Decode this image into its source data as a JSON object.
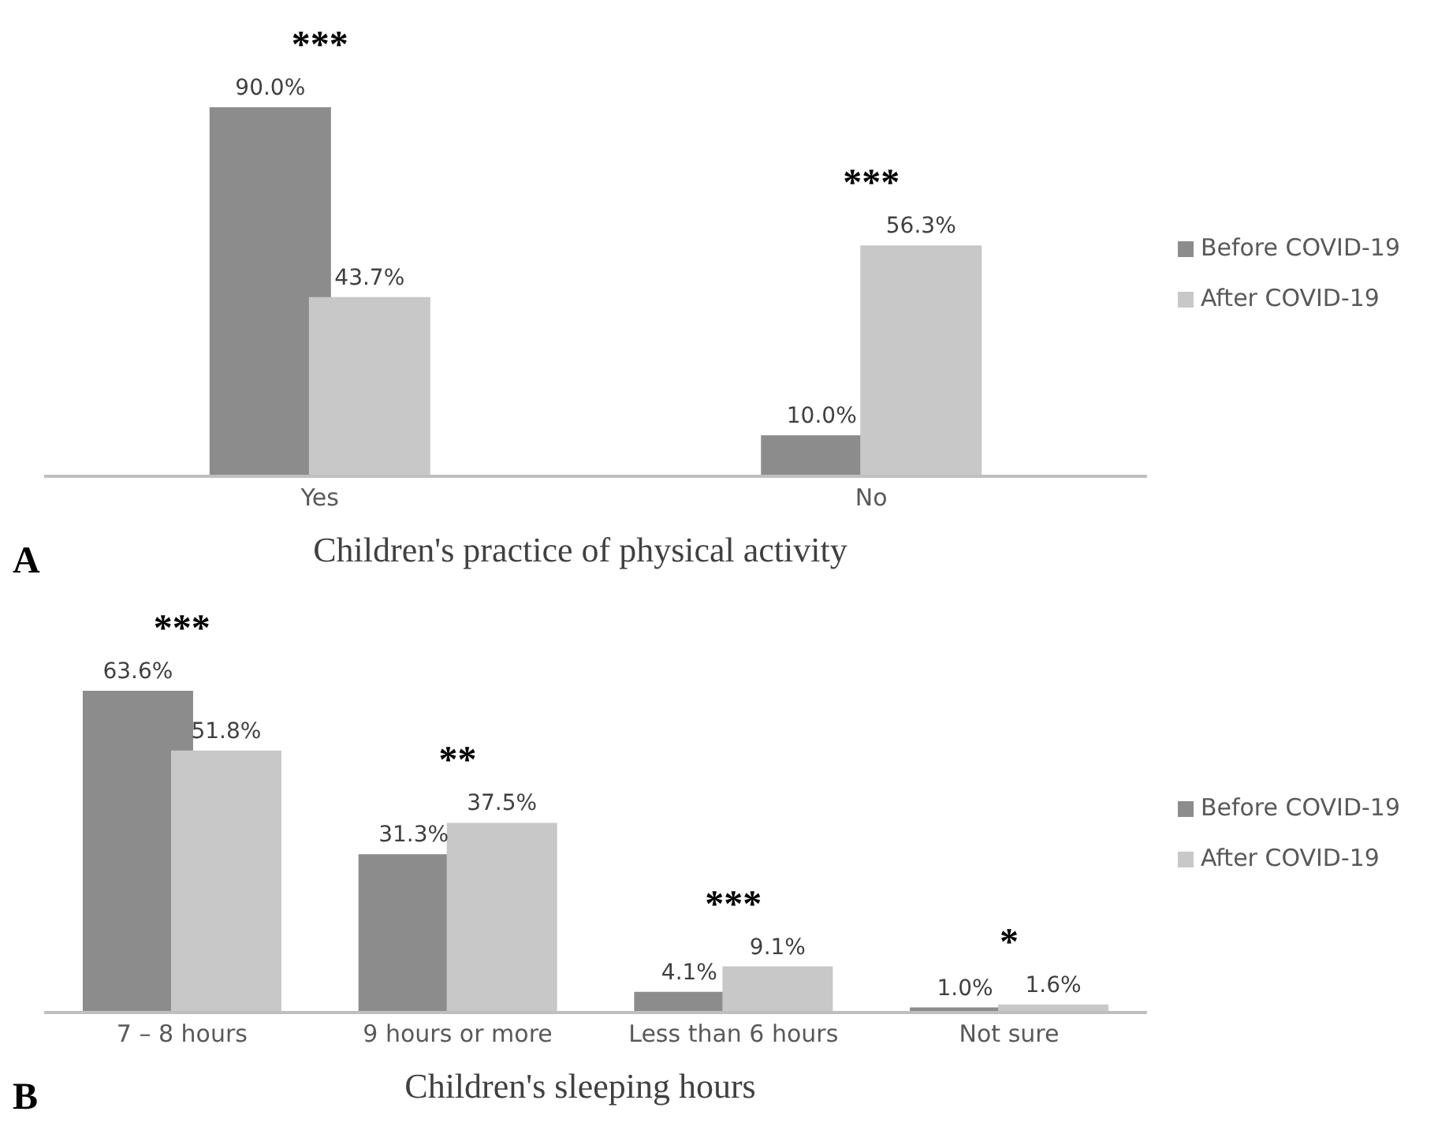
{
  "chart_data": [
    {
      "type": "bar",
      "xlabel": "Children's practice of physical activity",
      "categories": [
        "Yes",
        "No"
      ],
      "series": [
        {
          "name": "Before COVID-19",
          "color": "#8c8c8c",
          "values": [
            90.0,
            10.0
          ],
          "value_labels": [
            "90.0%",
            "10.0%"
          ]
        },
        {
          "name": "After COVID-19",
          "color": "#c8c8c8",
          "values": [
            43.7,
            56.3
          ],
          "value_labels": [
            "43.7%",
            "56.3%"
          ]
        }
      ],
      "legend": "right",
      "annotations": [
        {
          "text": "***",
          "x": "Yes",
          "y": 90.0
        },
        {
          "text": "***",
          "x": "No",
          "y": 56.3
        },
        "A"
      ]
    },
    {
      "type": "bar",
      "xlabel": "Children's sleeping hours",
      "categories": [
        "7 – 8 hours",
        "9 hours or more",
        "Less than 6 hours",
        "Not sure"
      ],
      "series": [
        {
          "name": "Before COVID-19",
          "color": "#8c8c8c",
          "values": [
            63.6,
            31.3,
            4.1,
            1.0
          ],
          "value_labels": [
            "63.6%",
            "31.3%",
            "4.1%",
            "1.0%"
          ]
        },
        {
          "name": "After COVID-19",
          "color": "#c8c8c8",
          "values": [
            51.8,
            37.5,
            9.1,
            1.6
          ],
          "value_labels": [
            "51.8%",
            "37.5%",
            "9.1%",
            "1.6%"
          ]
        }
      ],
      "legend": "right",
      "annotations": [
        {
          "text": "***",
          "x": "7 – 8 hours",
          "y": 63.6
        },
        {
          "text": "**",
          "x": "9 hours or more",
          "y": 37.5
        },
        {
          "text": "***",
          "x": "Less than 6 hours",
          "y": 9.1
        },
        {
          "text": "*",
          "x": "Not sure",
          "y": 1.6
        },
        "B"
      ]
    }
  ]
}
